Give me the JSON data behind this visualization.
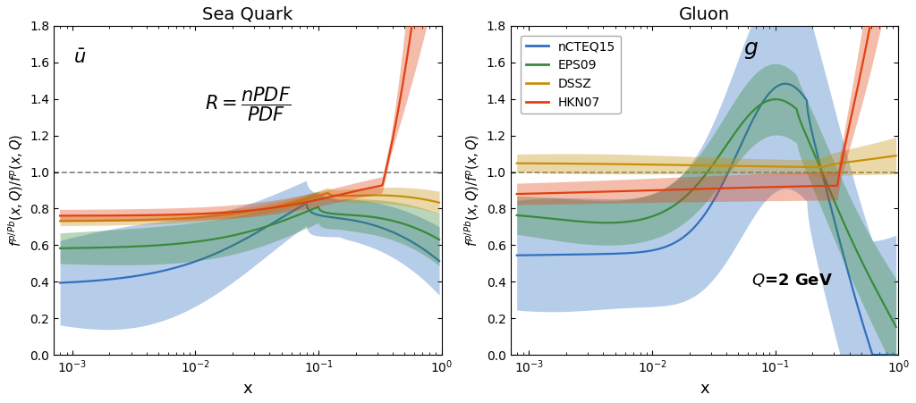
{
  "title_left": "Sea Quark",
  "title_right": "Gluon",
  "xlabel": "x",
  "ylim": [
    0.0,
    1.8
  ],
  "yticks": [
    0.0,
    0.2,
    0.4,
    0.6,
    0.8,
    1.0,
    1.2,
    1.4,
    1.6,
    1.8
  ],
  "colors": {
    "nCTEQ15": "#3070c0",
    "EPS09": "#3a8a3a",
    "DSSZ": "#c8900a",
    "HKN07": "#e04010"
  },
  "legend_labels": [
    "nCTEQ15",
    "EPS09",
    "DSSZ",
    "HKN07"
  ],
  "background_color": "#ffffff"
}
